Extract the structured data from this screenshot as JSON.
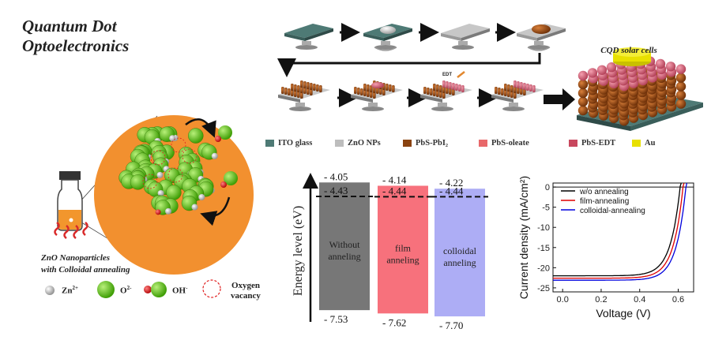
{
  "title": {
    "line1": "Quantum Dot",
    "line2": "Optoelectronics"
  },
  "process": {
    "edt_label": "EDT",
    "device_label": "CQD solar cells"
  },
  "legend": [
    {
      "label": "ITO glass",
      "color": "#4e7a75"
    },
    {
      "label": "ZnO NPs",
      "color": "#bdbdbd"
    },
    {
      "label": "PbS-PbI₂",
      "color": "#8a4310"
    },
    {
      "label": "PbS-oleate",
      "color": "#e8686a"
    },
    {
      "label": "PbS-EDT",
      "color": "#c8475e"
    },
    {
      "label": "Au",
      "color": "#e8e000"
    }
  ],
  "nanoparticle": {
    "caption_line1": "ZnO Nanoparticles",
    "caption_line2": "with Colloidal annealing",
    "key": [
      {
        "symbol": "Zn",
        "charge": "2+"
      },
      {
        "symbol": "O",
        "charge": "2-"
      },
      {
        "symbol": "OH",
        "charge": "-"
      },
      {
        "symbol": "Oxygen vacancy",
        "charge": ""
      }
    ]
  },
  "energy_diagram": {
    "y_label": "Energy level (eV)",
    "bars": [
      {
        "name_line1": "Without",
        "name_line2": "anneling",
        "top": "- 4.05",
        "fermi": "- 4.43",
        "bottom": "- 7.53",
        "color": "#777777"
      },
      {
        "name_line1": "film",
        "name_line2": "anneling",
        "top": "- 4.14",
        "fermi": "- 4.44",
        "bottom": "- 7.62",
        "color": "#f7717c"
      },
      {
        "name_line1": "colloidal",
        "name_line2": "anneling",
        "top": "- 4.22",
        "fermi": "- 4.44",
        "bottom": "- 7.70",
        "color": "#adadf5"
      }
    ]
  },
  "chart_data": {
    "type": "line",
    "xlabel": "Voltage (V)",
    "ylabel": "Current density (mA/cm²)",
    "xlim": [
      -0.05,
      0.68
    ],
    "ylim": [
      -26,
      1
    ],
    "xticks": [
      "0.0",
      "0.2",
      "0.4",
      "0.6"
    ],
    "yticks": [
      "0",
      "-5",
      "-10",
      "-15",
      "-20",
      "-25"
    ],
    "legend_position": "top-right",
    "series": [
      {
        "name": "w/o annealing",
        "color": "#000000",
        "jsc": -22.0,
        "voc": 0.61,
        "n": 0.05
      },
      {
        "name": "film-annealing",
        "color": "#e00000",
        "jsc": -22.6,
        "voc": 0.625,
        "n": 0.05
      },
      {
        "name": "colloidal-annealing",
        "color": "#0000dd",
        "jsc": -23.1,
        "voc": 0.64,
        "n": 0.05
      }
    ]
  }
}
